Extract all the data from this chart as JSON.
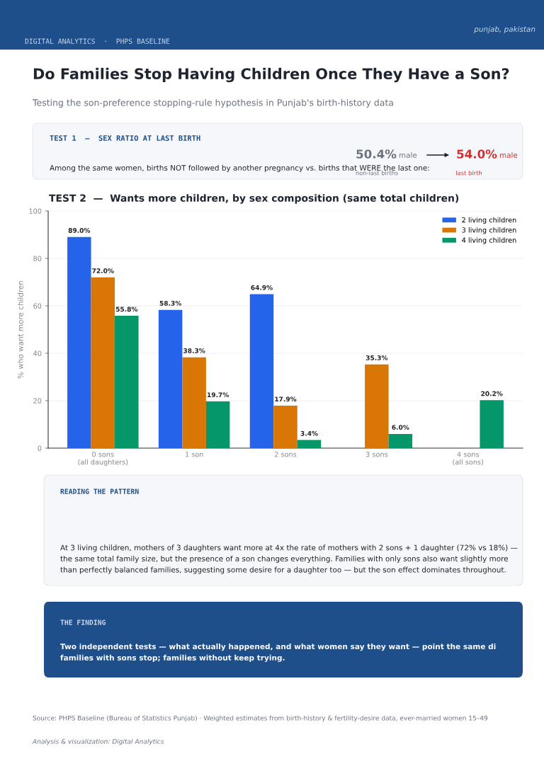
{
  "chart_data": {
    "type": "bar",
    "title": "Do Families Stop Having Children Once They Have a Son?",
    "subtitle": "Testing the son-preference stopping-rule hypothesis in Punjab's birth-history data",
    "ylabel": "% who want more children",
    "categories": [
      "0 sons\n(all daughters)",
      "1 son",
      "2 sons",
      "3 sons",
      "4 sons\n(all sons)"
    ],
    "series": [
      {
        "name": "2 living children",
        "color": "#2563eb",
        "values": [
          89.0,
          58.3,
          64.9,
          null,
          null
        ],
        "value_labels": [
          "89.0%",
          "58.3%",
          "64.9%",
          null,
          null
        ]
      },
      {
        "name": "3 living children",
        "color": "#d97706",
        "values": [
          72.0,
          38.3,
          17.9,
          35.3,
          null
        ],
        "value_labels": [
          "72.0%",
          "38.3%",
          "17.9%",
          "35.3%",
          null
        ]
      },
      {
        "name": "4 living children",
        "color": "#059669",
        "values": [
          55.8,
          19.7,
          3.4,
          6.0,
          20.2
        ],
        "value_labels": [
          "55.8%",
          "19.7%",
          "3.4%",
          "6.0%",
          "20.2%"
        ]
      }
    ],
    "ylim": [
      0,
      100
    ],
    "yticks": [
      0,
      20,
      40,
      60,
      80,
      100
    ],
    "grid": "y",
    "legend": "top right",
    "annotations": [
      "DIGITAL ANALYTICS  ·  PHPS BASELINE",
      "punjab, pakistan",
      "TEST 1  —  SEX RATIO AT LAST BIRTH",
      "Among the same women, births NOT followed by another pregnancy vs. births that WERE the last one:",
      "50.4%",
      "male",
      "non-last births",
      "54.0%",
      "male",
      "last birth",
      "TEST 2  —  Wants more children, by sex composition (same total children)",
      "READING THE PATTERN",
      "At 3 living children, mothers of 3 daughters want more at 4x the rate of mothers with 2 sons + 1 daughter (72% vs 18%) —\nthe same total family size, but the presence of a son changes everything. Families with only sons also want slightly more\nthan perfectly balanced families, suggesting some desire for a daughter too — but the son effect dominates throughout.",
      "THE FINDING",
      "Two independent tests — what actually happened, and what women say they want — point the same di\nfamilies with sons stop; families without keep trying.",
      "Source: PHPS Baseline (Bureau of Statistics Punjab) · Weighted estimates from birth-history & fertility-desire data, ever-married women 15–49",
      "Analysis & visualization: Digital Analytics"
    ]
  }
}
